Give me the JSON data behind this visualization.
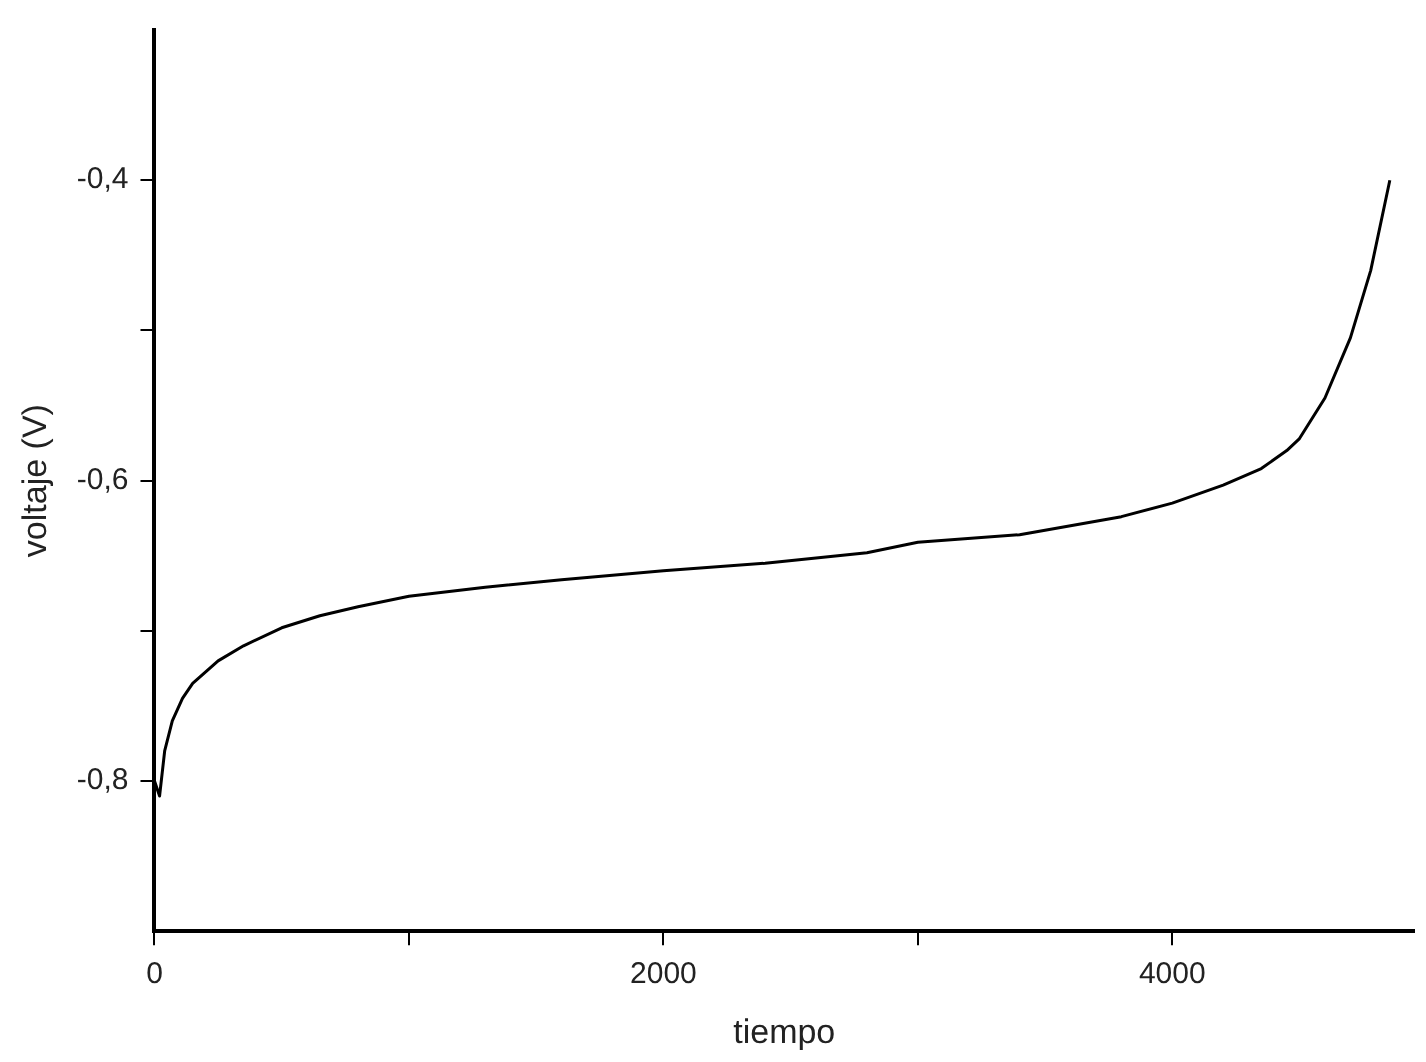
{
  "chart_data": {
    "type": "line",
    "xlabel": "tiempo",
    "ylabel": "voltaje (V)",
    "x": [
      0,
      20,
      40,
      70,
      110,
      150,
      250,
      350,
      500,
      650,
      800,
      1000,
      1300,
      1600,
      2000,
      2400,
      2800,
      3000,
      3400,
      3800,
      4000,
      4200,
      4350,
      4450,
      4500,
      4600,
      4700,
      4780,
      4855
    ],
    "series": [
      {
        "color": "#000000",
        "values": [
          -0.8,
          -0.81,
          -0.78,
          -0.76,
          -0.745,
          -0.735,
          -0.72,
          -0.71,
          -0.698,
          -0.69,
          -0.684,
          -0.677,
          -0.671,
          -0.666,
          -0.66,
          -0.655,
          -0.648,
          -0.641,
          -0.636,
          -0.624,
          -0.615,
          -0.603,
          -0.592,
          -0.58,
          -0.572,
          -0.545,
          -0.505,
          -0.46,
          -0.4
        ]
      }
    ],
    "xlim": [
      0,
      4950
    ],
    "ylim": [
      -0.9,
      -0.3
    ],
    "xticks": [
      0,
      {
        "value": 1000,
        "label": null
      },
      2000,
      {
        "value": 3000,
        "label": null
      },
      4000
    ],
    "yticks": [
      {
        "value": -0.8,
        "label": "-0,8"
      },
      {
        "value": -0.7,
        "label": null
      },
      {
        "value": -0.6,
        "label": "-0,6"
      },
      {
        "value": -0.5,
        "label": null
      },
      {
        "value": -0.4,
        "label": "-0,4"
      }
    ],
    "legend": false
  }
}
